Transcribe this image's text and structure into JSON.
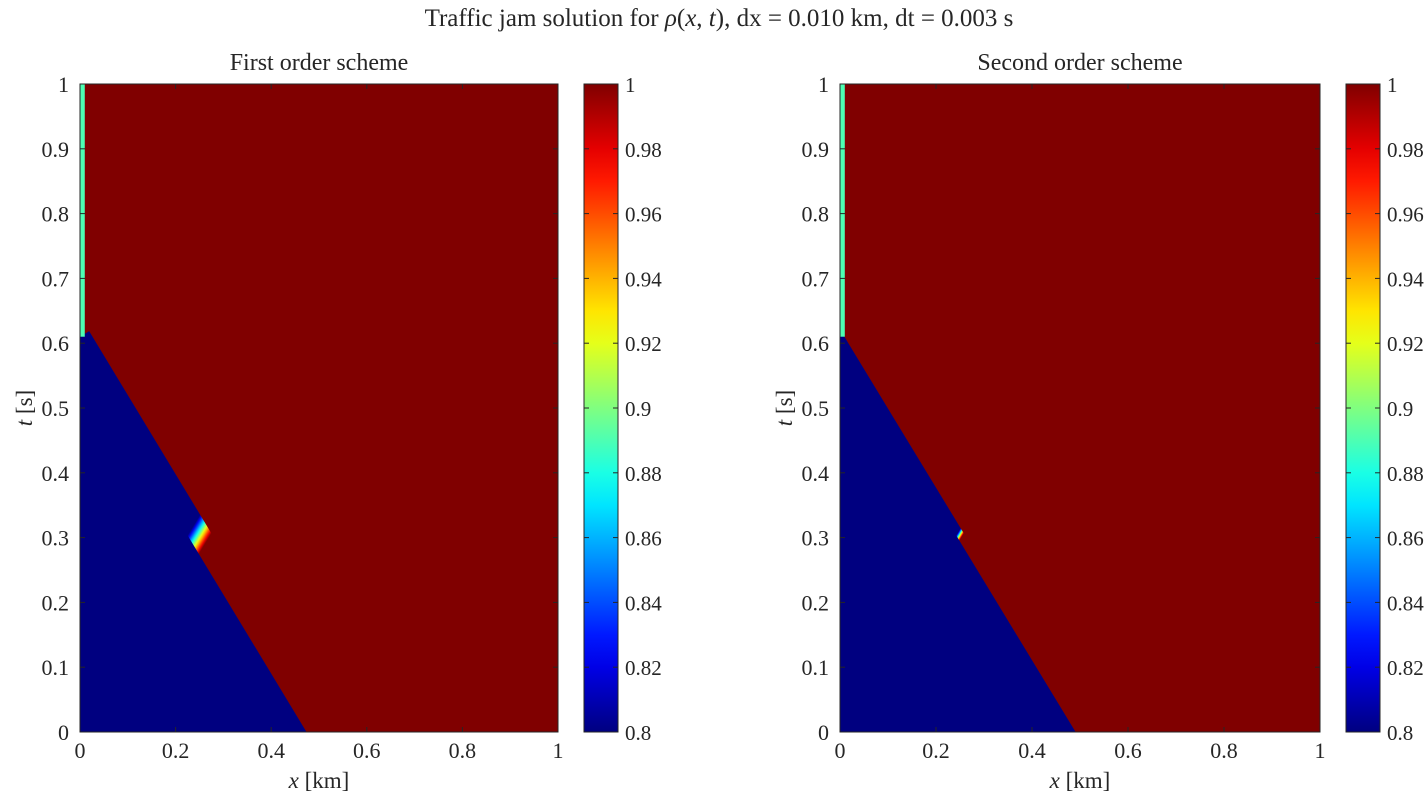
{
  "figure": {
    "title_prefix": "Traffic jam solution for ",
    "title_rho": "ρ",
    "title_paren_open": "(",
    "title_x": "x",
    "title_comma": ", ",
    "title_t": "t",
    "title_suffix": "), dx = 0.010 km, dt = 0.003 s"
  },
  "chart_data": [
    {
      "type": "heatmap",
      "title": "First order scheme",
      "xlabel_var": "x",
      "xlabel_unit": " [km]",
      "ylabel_var": "t",
      "ylabel_unit": " [s]",
      "xlim": [
        0,
        1
      ],
      "ylim": [
        0,
        1
      ],
      "xticks": [
        0,
        0.2,
        0.4,
        0.6,
        0.8,
        1
      ],
      "xtick_labels": [
        "0",
        "0.2",
        "0.4",
        "0.6",
        "0.8",
        "1"
      ],
      "yticks": [
        0,
        0.1,
        0.2,
        0.3,
        0.4,
        0.5,
        0.6,
        0.7,
        0.8,
        0.9,
        1
      ],
      "ytick_labels": [
        "0",
        "0.1",
        "0.2",
        "0.3",
        "0.4",
        "0.5",
        "0.6",
        "0.7",
        "0.8",
        "0.9",
        "1"
      ],
      "colormap": "jet",
      "clim": [
        0.8,
        1
      ],
      "colorbar_ticks": [
        0.8,
        0.82,
        0.84,
        0.86,
        0.88,
        0.9,
        0.92,
        0.94,
        0.96,
        0.98,
        1
      ],
      "colorbar_tick_labels": [
        "0.8",
        "0.82",
        "0.84",
        "0.86",
        "0.88",
        "0.9",
        "0.92",
        "0.94",
        "0.96",
        "0.98",
        "1"
      ],
      "low_value": 0.8,
      "high_value": 1,
      "shock_front": {
        "x_at_t0": 0.5,
        "t_at_x0": 0.61
      },
      "shock_width_x": 0.04,
      "left_boundary_strip": {
        "x_max": 0.01,
        "t_from": 0.61,
        "t_to": 1
      }
    },
    {
      "type": "heatmap",
      "title": "Second order scheme",
      "xlabel_var": "x",
      "xlabel_unit": " [km]",
      "ylabel_var": "t",
      "ylabel_unit": " [s]",
      "xlim": [
        0,
        1
      ],
      "ylim": [
        0,
        1
      ],
      "xticks": [
        0,
        0.2,
        0.4,
        0.6,
        0.8,
        1
      ],
      "xtick_labels": [
        "0",
        "0.2",
        "0.4",
        "0.6",
        "0.8",
        "1"
      ],
      "yticks": [
        0,
        0.1,
        0.2,
        0.3,
        0.4,
        0.5,
        0.6,
        0.7,
        0.8,
        0.9,
        1
      ],
      "ytick_labels": [
        "0",
        "0.1",
        "0.2",
        "0.3",
        "0.4",
        "0.5",
        "0.6",
        "0.7",
        "0.8",
        "0.9",
        "1"
      ],
      "colormap": "jet",
      "clim": [
        0.8,
        1
      ],
      "colorbar_ticks": [
        0.8,
        0.82,
        0.84,
        0.86,
        0.88,
        0.9,
        0.92,
        0.94,
        0.96,
        0.98,
        1
      ],
      "colorbar_tick_labels": [
        "0.8",
        "0.82",
        "0.84",
        "0.86",
        "0.88",
        "0.9",
        "0.92",
        "0.94",
        "0.96",
        "0.98",
        "1"
      ],
      "low_value": 0.8,
      "high_value": 1,
      "shock_front": {
        "x_at_t0": 0.5,
        "t_at_x0": 0.61
      },
      "shock_width_x": 0.006,
      "left_boundary_strip": {
        "x_max": 0.01,
        "t_from": 0.61,
        "t_to": 1
      }
    }
  ]
}
